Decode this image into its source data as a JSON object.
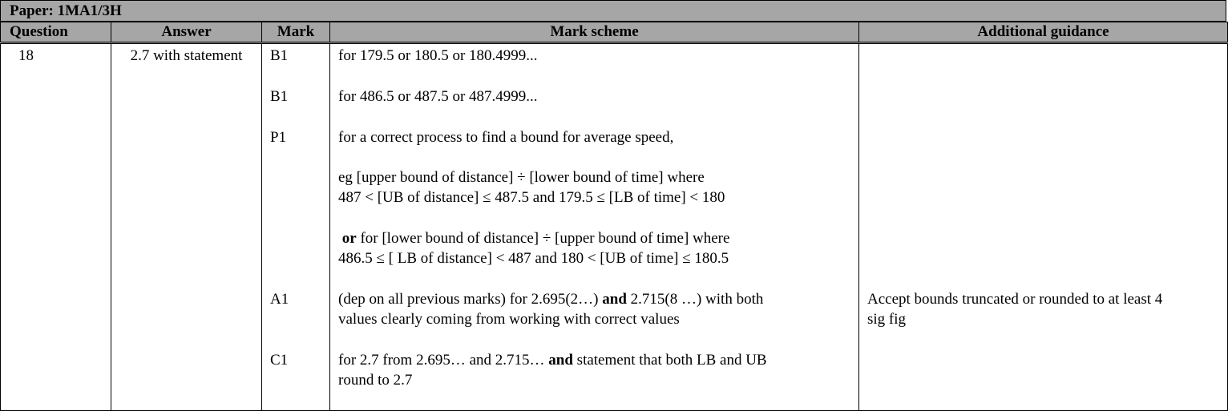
{
  "paper": {
    "label": "Paper: 1MA1/3H"
  },
  "columns": {
    "question": "Question",
    "answer": "Answer",
    "mark": "Mark",
    "scheme": "Mark scheme",
    "guidance": "Additional guidance"
  },
  "row": {
    "question": "18",
    "answer": "2.7 with statement",
    "marks": [
      "B1",
      "B1",
      "P1",
      "A1",
      "C1"
    ],
    "scheme": {
      "b1_first": "for 179.5 or 180.5 or 180.4999...",
      "b1_second": "for 486.5 or 487.5 or 487.4999...",
      "p1_intro": "for a correct process to find a bound for average speed,",
      "p1_eg_line1": "eg [upper bound of distance] ÷ [lower bound of time] where",
      "p1_eg_line2": "487 < [UB of distance] ≤ 487.5 and 179.5 ≤ [LB of time] < 180",
      "p1_or_word": "or",
      "p1_or_line1": " for [lower bound of distance] ÷ [upper bound of time] where",
      "p1_or_line2": "486.5 ≤ [ LB of distance] < 487 and 180 < [UB of time] ≤ 180.5",
      "a1_part1": "(dep on all previous marks) for 2.695(2…) ",
      "a1_and": "and",
      "a1_part2": " 2.715(8 …) with both",
      "a1_line2": "values clearly coming from working with correct values",
      "c1_part1": "for 2.7 from 2.695… and 2.715… ",
      "c1_and": "and",
      "c1_part2": " statement that both LB and UB",
      "c1_line2": "round to 2.7"
    },
    "guidance": {
      "a1_line1": "Accept bounds truncated or rounded to at least 4",
      "a1_line2": "sig fig"
    }
  }
}
